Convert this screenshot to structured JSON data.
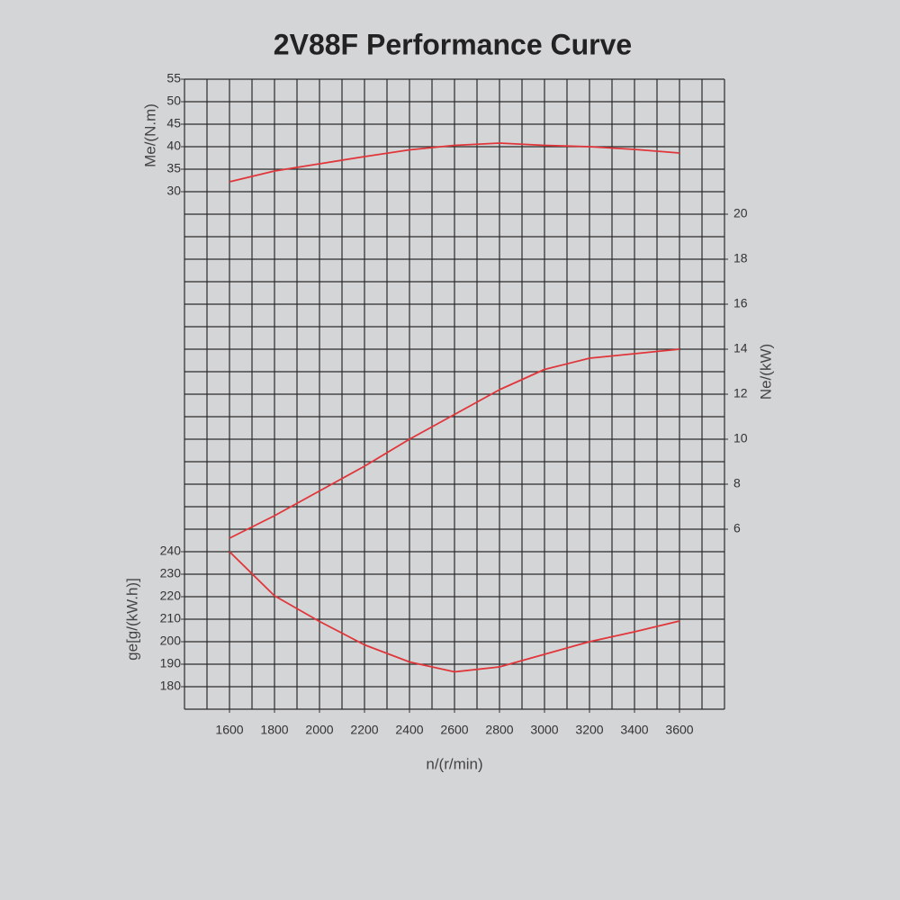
{
  "chart_data": {
    "type": "line",
    "title": "2V88F Performance Curve",
    "xlabel": "n/(r/min)",
    "x": [
      1600,
      1800,
      2000,
      2200,
      2400,
      2600,
      2800,
      3000,
      3200,
      3400,
      3600
    ],
    "xlim": [
      1400,
      3800
    ],
    "xticks": [
      1600,
      1800,
      2000,
      2200,
      2400,
      2600,
      2800,
      3000,
      3200,
      3400,
      3600
    ],
    "grid": true,
    "axes": [
      {
        "label": "Me/(N.m)",
        "side": "left",
        "lim": [
          -85,
          55
        ],
        "ticks": [
          30,
          35,
          40,
          45,
          50,
          55
        ]
      },
      {
        "label": "Ne/(kW)",
        "side": "right",
        "lim": [
          -2,
          26
        ],
        "ticks": [
          6,
          8,
          10,
          12,
          14,
          16,
          18,
          20
        ]
      },
      {
        "label": "ge[g/(kW.h)]",
        "side": "left",
        "lim": [
          170,
          450
        ],
        "ticks": [
          180,
          190,
          200,
          210,
          220,
          230,
          240
        ]
      }
    ],
    "series": [
      {
        "axis": 0,
        "color": "#e0363a",
        "values": [
          32.2,
          34.6,
          36.2,
          37.8,
          39.3,
          40.3,
          40.8,
          40.3,
          40.0,
          39.4,
          38.6
        ]
      },
      {
        "axis": 1,
        "color": "#e0363a",
        "values": [
          5.6,
          6.6,
          7.7,
          8.8,
          10.0,
          11.1,
          12.2,
          13.1,
          13.6,
          13.8,
          14.0
        ]
      },
      {
        "axis": 2,
        "color": "#e0363a",
        "values": [
          240,
          220.4,
          209,
          198.6,
          191,
          186.6,
          188.8,
          194.4,
          200,
          204.4,
          209.2
        ]
      }
    ]
  }
}
